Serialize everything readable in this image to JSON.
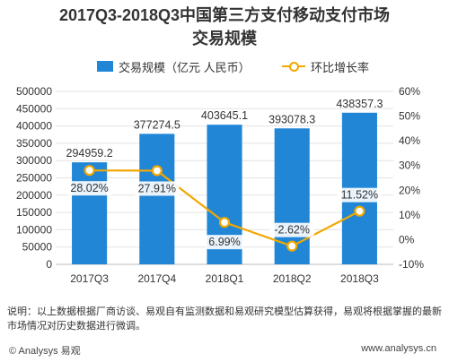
{
  "title_line1": "2017Q3-2018Q3中国第三方支付移动支付市场",
  "title_line2": "交易规模",
  "legend": {
    "bar_label": "交易规模（亿元 人民币）",
    "line_label": "环比增长率"
  },
  "chart_data": {
    "type": "bar",
    "categories": [
      "2017Q3",
      "2017Q4",
      "2018Q1",
      "2018Q2",
      "2018Q3"
    ],
    "series": [
      {
        "name": "交易规模（亿元 人民币）",
        "type": "bar",
        "axis": "left",
        "values": [
          294959.2,
          377274.5,
          403645.1,
          393078.3,
          438357.3
        ],
        "labels": [
          "294959.2",
          "377274.5",
          "403645.1",
          "393078.3",
          "438357.3"
        ],
        "color": "#2186d6"
      },
      {
        "name": "环比增长率",
        "type": "line",
        "axis": "right",
        "values": [
          28.02,
          27.91,
          6.99,
          -2.62,
          11.52
        ],
        "labels": [
          "28.02%",
          "27.91%",
          "6.99%",
          "-2.62%",
          "11.52%"
        ],
        "color": "#f2a800"
      }
    ],
    "y_left": {
      "ylim": [
        0,
        500000
      ],
      "ticks": [
        0,
        50000,
        100000,
        150000,
        200000,
        250000,
        300000,
        350000,
        400000,
        450000,
        500000
      ],
      "tick_labels": [
        "0",
        "50000",
        "100000",
        "150000",
        "200000",
        "250000",
        "300000",
        "350000",
        "400000",
        "450000",
        "500000"
      ]
    },
    "y_right": {
      "ylim": [
        -10,
        60
      ],
      "ticks": [
        -10,
        0,
        10,
        20,
        30,
        40,
        50,
        60
      ],
      "tick_labels": [
        "-10%",
        "0%",
        "10%",
        "20%",
        "30%",
        "40%",
        "50%",
        "60%"
      ]
    },
    "grid": true,
    "legend_position": "top"
  },
  "note": "说明：以上数据根据厂商访谈、易观自有监测数据和易观研究模型估算获得，易观将根据掌握的最新市场情况对历史数据进行微调。",
  "footer": {
    "brand": "© Analysys 易观",
    "url": "www.analysys.cn"
  }
}
